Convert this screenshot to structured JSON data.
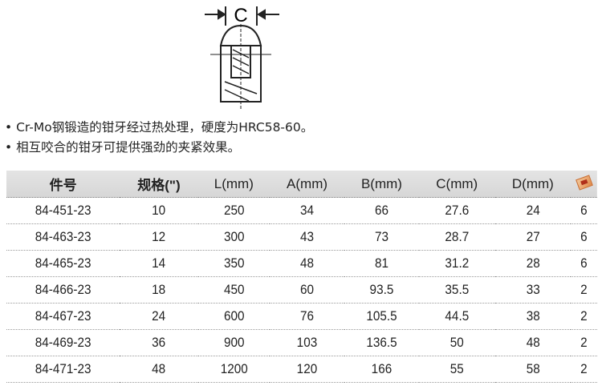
{
  "diagram": {
    "label": "C"
  },
  "bullets": [
    "Cr-Mo钢锻造的钳牙经过热处理，硬度为HRC58-60。",
    "相互咬合的钳牙可提供强劲的夹紧效果。"
  ],
  "table": {
    "headers": [
      "件号",
      "规格(\")",
      "L(mm)",
      "A(mm)",
      "B(mm)",
      "C(mm)",
      "D(mm)"
    ],
    "pack_icon": "package-box-icon",
    "rows": [
      [
        "84-451-23",
        "10",
        "250",
        "34",
        "66",
        "27.6",
        "24",
        "6"
      ],
      [
        "84-463-23",
        "12",
        "300",
        "43",
        "73",
        "28.7",
        "27",
        "6"
      ],
      [
        "84-465-23",
        "14",
        "350",
        "48",
        "81",
        "31.2",
        "28",
        "6"
      ],
      [
        "84-466-23",
        "18",
        "450",
        "60",
        "93.5",
        "35.5",
        "33",
        "2"
      ],
      [
        "84-467-23",
        "24",
        "600",
        "76",
        "105.5",
        "44.5",
        "38",
        "2"
      ],
      [
        "84-469-23",
        "36",
        "900",
        "103",
        "136.5",
        "50",
        "48",
        "2"
      ],
      [
        "84-471-23",
        "48",
        "1200",
        "120",
        "166",
        "55",
        "58",
        "2"
      ]
    ]
  }
}
